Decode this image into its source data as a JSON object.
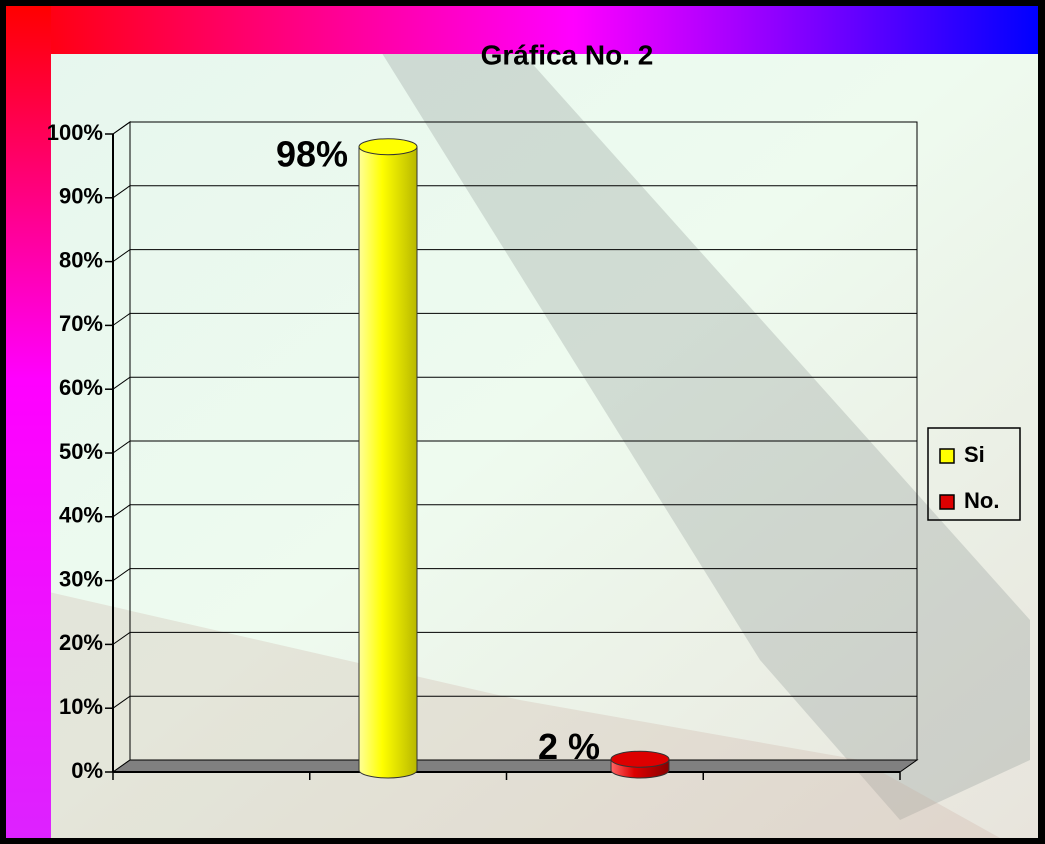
{
  "chart_data": {
    "type": "bar",
    "title": "Gráfica  No.  2",
    "categories": [
      null
    ],
    "series": [
      {
        "name": "Si",
        "color": "#ffff00",
        "values": [
          98
        ],
        "value_labels": [
          "98%"
        ]
      },
      {
        "name": "No.",
        "color": "#dd0000",
        "values": [
          2
        ],
        "value_labels": [
          "2 %"
        ]
      }
    ],
    "ylim": [
      0,
      100
    ],
    "yticks": [
      {
        "value": 0,
        "label": "0%"
      },
      {
        "value": 10,
        "label": "10%"
      },
      {
        "value": 20,
        "label": "20%"
      },
      {
        "value": 30,
        "label": "30%"
      },
      {
        "value": 40,
        "label": "40%"
      },
      {
        "value": 50,
        "label": "50%"
      },
      {
        "value": 60,
        "label": "60%"
      },
      {
        "value": 70,
        "label": "70%"
      },
      {
        "value": 80,
        "label": "80%"
      },
      {
        "value": 90,
        "label": "90%"
      },
      {
        "value": 100,
        "label": "100%"
      }
    ],
    "grid": true,
    "legend": "right"
  }
}
